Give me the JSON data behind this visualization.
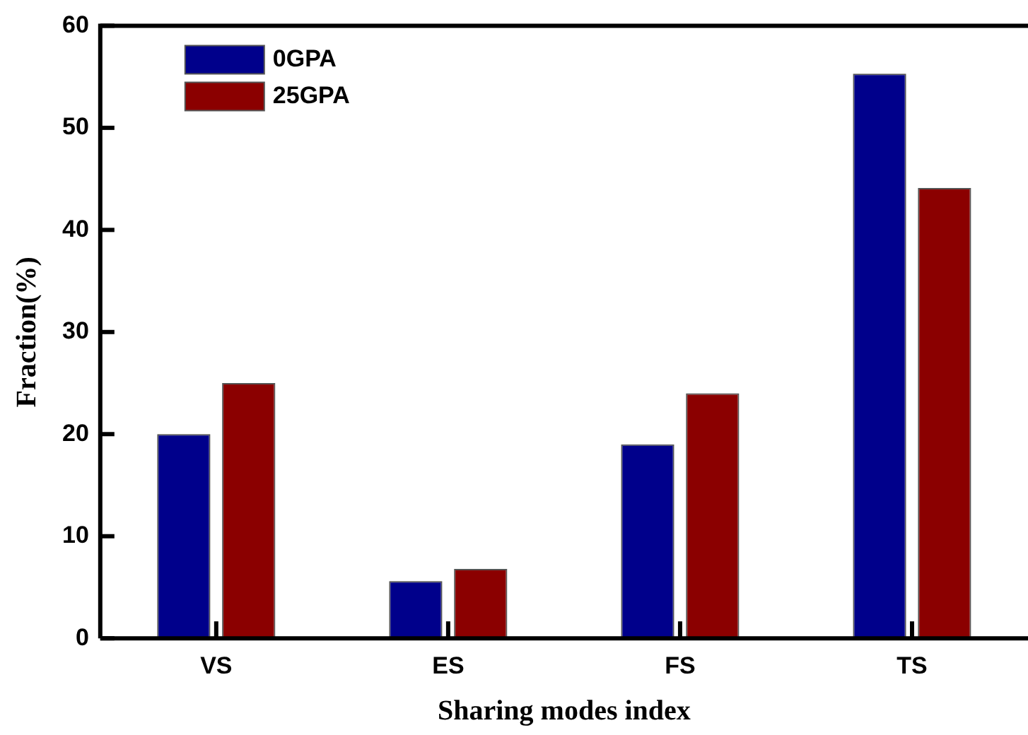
{
  "chart_data": {
    "type": "bar",
    "xlabel": "Sharing modes index",
    "ylabel": "Fraction(%)",
    "categories": [
      "VS",
      "ES",
      "FS",
      "TS"
    ],
    "series": [
      {
        "name": "0GPA",
        "color": "#00008b",
        "values": [
          20,
          5.6,
          19,
          55.3
        ]
      },
      {
        "name": "25GPA",
        "color": "#8b0000",
        "values": [
          25,
          6.8,
          24,
          44.1
        ]
      }
    ],
    "ylim": [
      0,
      60
    ],
    "yticks": [
      0,
      10,
      20,
      30,
      40,
      50,
      60
    ],
    "grid": false,
    "legend": "top left"
  }
}
